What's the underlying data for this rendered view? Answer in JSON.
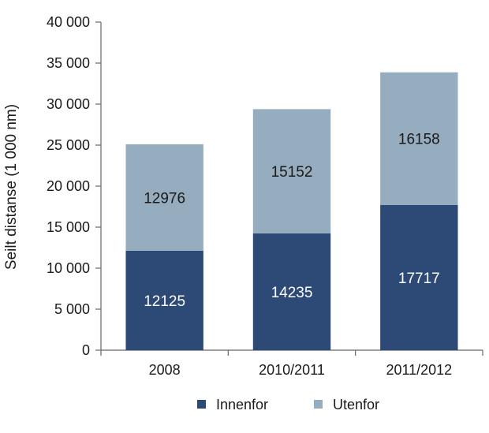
{
  "chart_data": {
    "type": "bar",
    "stacked": true,
    "categories": [
      "2008",
      "2010/2011",
      "2011/2012"
    ],
    "series": [
      {
        "name": "Innenfor",
        "values": [
          12125,
          14235,
          17717
        ],
        "color": "#2d4a77"
      },
      {
        "name": "Utenfor",
        "values": [
          12976,
          15152,
          16158
        ],
        "color": "#95adbf"
      }
    ],
    "ylabel": "Seilt distanse (1 000 nm)",
    "xlabel": "",
    "ylim": [
      0,
      40000
    ],
    "yticks": [
      0,
      5000,
      10000,
      15000,
      20000,
      25000,
      30000,
      35000,
      40000
    ],
    "ytick_labels": [
      "0",
      "5 000",
      "10 000",
      "15 000",
      "20 000",
      "25 000",
      "30 000",
      "35 000",
      "40 000"
    ],
    "grid": false,
    "legend": "bottom",
    "data_labels": true
  }
}
